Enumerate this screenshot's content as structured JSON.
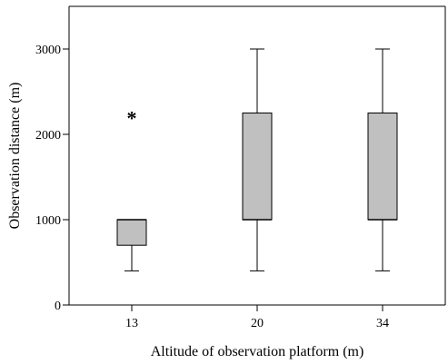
{
  "chart_data": {
    "type": "box",
    "xlabel": "Altitude of observation platform (m)",
    "ylabel": "Observation distance (m)",
    "ylim": [
      0,
      3500
    ],
    "yticks": [
      0,
      1000,
      2000,
      3000
    ],
    "grid": false,
    "categories": [
      "13",
      "20",
      "34"
    ],
    "boxes": [
      {
        "category": "13",
        "whisker_low": 400,
        "q1": 700,
        "median": 1000,
        "q3": 1000,
        "whisker_high": 1000,
        "outliers": [
          2250
        ]
      },
      {
        "category": "20",
        "whisker_low": 400,
        "q1": 1000,
        "median": 1000,
        "q3": 2250,
        "whisker_high": 3000,
        "outliers": []
      },
      {
        "category": "34",
        "whisker_low": 400,
        "q1": 1000,
        "median": 1000,
        "q3": 2250,
        "whisker_high": 3000,
        "outliers": []
      }
    ],
    "outlier_marker": "*",
    "colors": {
      "box_fill": "#c0c0c0",
      "stroke": "#000000"
    }
  }
}
